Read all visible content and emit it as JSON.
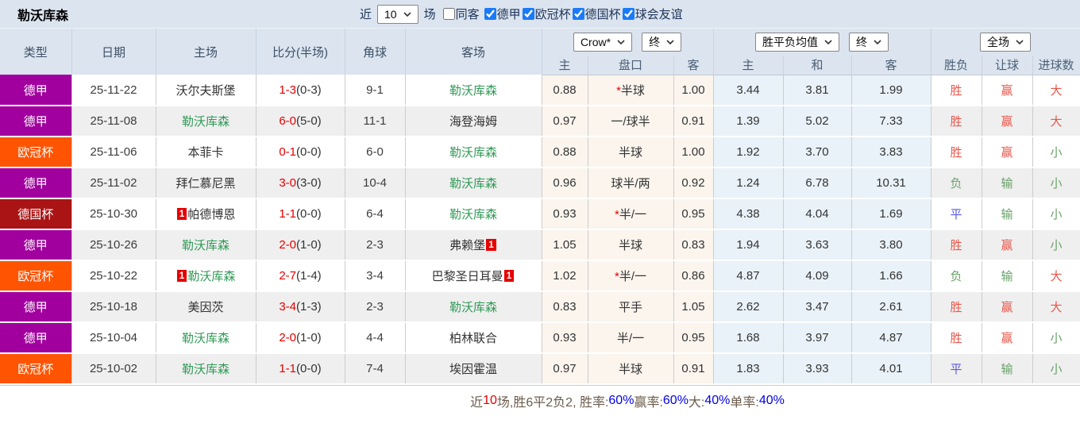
{
  "title": "勒沃库森",
  "colors": {
    "purple": "#a1009e",
    "orange": "#ff5502",
    "darkred": "#aa1414",
    "team_green": "#2f9a56",
    "score_red": "#e60000",
    "win_red": "#e8574b",
    "lose_green": "#69a269",
    "draw_blue": "#5a5ae0",
    "pct_blue": "#0000ee"
  },
  "topbar": {
    "recent_label": "近",
    "recent_value": "10",
    "games_label": "场",
    "same_venue_label": "同客",
    "same_venue_checked": false,
    "league_filters": [
      {
        "label": "德甲",
        "checked": true
      },
      {
        "label": "欧冠杯",
        "checked": true
      },
      {
        "label": "德国杯",
        "checked": true
      },
      {
        "label": "球会友谊",
        "checked": true
      }
    ]
  },
  "table": {
    "headers": {
      "cols": [
        "类型",
        "日期",
        "主场",
        "比分(半场)",
        "角球",
        "客场"
      ],
      "crow_select": "Crow*",
      "crow_state_select": "终",
      "avg_select": "胜平负均值",
      "avg_state_select": "终",
      "full_select": "全场",
      "sub": [
        "主",
        "盘口",
        "客",
        "主",
        "和",
        "客",
        "胜负",
        "让球",
        "进球数"
      ]
    },
    "rows": [
      {
        "league": "德甲",
        "league_color": "purple",
        "date": "25-11-22",
        "home": {
          "name": "沃尔夫斯堡",
          "green": false,
          "badge": null
        },
        "score": "1-3",
        "half": "(0-3)",
        "corners": "9-1",
        "away": {
          "name": "勒沃库森",
          "green": true,
          "badge": null
        },
        "crow": {
          "home": "0.88",
          "star": true,
          "handicap": "半球",
          "away": "1.00"
        },
        "avg": {
          "home": "3.44",
          "draw": "3.81",
          "away": "1.99"
        },
        "verdict": {
          "result": "胜",
          "result_cls": "r",
          "let": "赢",
          "let_cls": "r",
          "goals": "大",
          "goals_cls": "r"
        }
      },
      {
        "league": "德甲",
        "league_color": "purple",
        "date": "25-11-08",
        "home": {
          "name": "勒沃库森",
          "green": true,
          "badge": null
        },
        "score": "6-0",
        "half": "(5-0)",
        "corners": "11-1",
        "away": {
          "name": "海登海姆",
          "green": false,
          "badge": null
        },
        "crow": {
          "home": "0.97",
          "star": false,
          "handicap": "一/球半",
          "away": "0.91"
        },
        "avg": {
          "home": "1.39",
          "draw": "5.02",
          "away": "7.33"
        },
        "verdict": {
          "result": "胜",
          "result_cls": "r",
          "let": "赢",
          "let_cls": "r",
          "goals": "大",
          "goals_cls": "r"
        }
      },
      {
        "league": "欧冠杯",
        "league_color": "orange",
        "date": "25-11-06",
        "home": {
          "name": "本菲卡",
          "green": false,
          "badge": null
        },
        "score": "0-1",
        "half": "(0-0)",
        "corners": "6-0",
        "away": {
          "name": "勒沃库森",
          "green": true,
          "badge": null
        },
        "crow": {
          "home": "0.88",
          "star": false,
          "handicap": "半球",
          "away": "1.00"
        },
        "avg": {
          "home": "1.92",
          "draw": "3.70",
          "away": "3.83"
        },
        "verdict": {
          "result": "胜",
          "result_cls": "r",
          "let": "赢",
          "let_cls": "r",
          "goals": "小",
          "goals_cls": "g"
        }
      },
      {
        "league": "德甲",
        "league_color": "purple",
        "date": "25-11-02",
        "home": {
          "name": "拜仁慕尼黑",
          "green": false,
          "badge": null
        },
        "score": "3-0",
        "half": "(3-0)",
        "corners": "10-4",
        "away": {
          "name": "勒沃库森",
          "green": true,
          "badge": null
        },
        "crow": {
          "home": "0.96",
          "star": false,
          "handicap": "球半/两",
          "away": "0.92"
        },
        "avg": {
          "home": "1.24",
          "draw": "6.78",
          "away": "10.31"
        },
        "verdict": {
          "result": "负",
          "result_cls": "g",
          "let": "输",
          "let_cls": "g",
          "goals": "小",
          "goals_cls": "g"
        }
      },
      {
        "league": "德国杯",
        "league_color": "darkred",
        "date": "25-10-30",
        "home": {
          "name": "帕德博恩",
          "green": false,
          "badge": "pre"
        },
        "score": "1-1",
        "half": "(0-0)",
        "corners": "6-4",
        "away": {
          "name": "勒沃库森",
          "green": true,
          "badge": null
        },
        "crow": {
          "home": "0.93",
          "star": true,
          "handicap": "半/一",
          "away": "0.95"
        },
        "avg": {
          "home": "4.38",
          "draw": "4.04",
          "away": "1.69"
        },
        "verdict": {
          "result": "平",
          "result_cls": "b",
          "let": "输",
          "let_cls": "g",
          "goals": "小",
          "goals_cls": "g"
        }
      },
      {
        "league": "德甲",
        "league_color": "purple",
        "date": "25-10-26",
        "home": {
          "name": "勒沃库森",
          "green": true,
          "badge": null
        },
        "score": "2-0",
        "half": "(1-0)",
        "corners": "2-3",
        "away": {
          "name": "弗赖堡",
          "green": false,
          "badge": "post"
        },
        "crow": {
          "home": "1.05",
          "star": false,
          "handicap": "半球",
          "away": "0.83"
        },
        "avg": {
          "home": "1.94",
          "draw": "3.63",
          "away": "3.80"
        },
        "verdict": {
          "result": "胜",
          "result_cls": "r",
          "let": "赢",
          "let_cls": "r",
          "goals": "小",
          "goals_cls": "g"
        }
      },
      {
        "league": "欧冠杯",
        "league_color": "orange",
        "date": "25-10-22",
        "home": {
          "name": "勒沃库森",
          "green": true,
          "badge": "pre"
        },
        "score": "2-7",
        "half": "(1-4)",
        "corners": "3-4",
        "away": {
          "name": "巴黎圣日耳曼",
          "green": false,
          "badge": "post"
        },
        "crow": {
          "home": "1.02",
          "star": true,
          "handicap": "半/一",
          "away": "0.86"
        },
        "avg": {
          "home": "4.87",
          "draw": "4.09",
          "away": "1.66"
        },
        "verdict": {
          "result": "负",
          "result_cls": "g",
          "let": "输",
          "let_cls": "g",
          "goals": "大",
          "goals_cls": "r"
        }
      },
      {
        "league": "德甲",
        "league_color": "purple",
        "date": "25-10-18",
        "home": {
          "name": "美因茨",
          "green": false,
          "badge": null
        },
        "score": "3-4",
        "half": "(1-3)",
        "corners": "2-3",
        "away": {
          "name": "勒沃库森",
          "green": true,
          "badge": null
        },
        "crow": {
          "home": "0.83",
          "star": false,
          "handicap": "平手",
          "away": "1.05"
        },
        "avg": {
          "home": "2.62",
          "draw": "3.47",
          "away": "2.61"
        },
        "verdict": {
          "result": "胜",
          "result_cls": "r",
          "let": "赢",
          "let_cls": "r",
          "goals": "大",
          "goals_cls": "r"
        }
      },
      {
        "league": "德甲",
        "league_color": "purple",
        "date": "25-10-04",
        "home": {
          "name": "勒沃库森",
          "green": true,
          "badge": null
        },
        "score": "2-0",
        "half": "(1-0)",
        "corners": "4-4",
        "away": {
          "name": "柏林联合",
          "green": false,
          "badge": null
        },
        "crow": {
          "home": "0.93",
          "star": false,
          "handicap": "半/一",
          "away": "0.95"
        },
        "avg": {
          "home": "1.68",
          "draw": "3.97",
          "away": "4.87"
        },
        "verdict": {
          "result": "胜",
          "result_cls": "r",
          "let": "赢",
          "let_cls": "r",
          "goals": "小",
          "goals_cls": "g"
        }
      },
      {
        "league": "欧冠杯",
        "league_color": "orange",
        "date": "25-10-02",
        "home": {
          "name": "勒沃库森",
          "green": true,
          "badge": null
        },
        "score": "1-1",
        "half": "(0-0)",
        "corners": "7-4",
        "away": {
          "name": "埃因霍温",
          "green": false,
          "badge": null
        },
        "crow": {
          "home": "0.97",
          "star": false,
          "handicap": "半球",
          "away": "0.91"
        },
        "avg": {
          "home": "1.83",
          "draw": "3.93",
          "away": "4.01"
        },
        "verdict": {
          "result": "平",
          "result_cls": "b",
          "let": "输",
          "let_cls": "g",
          "goals": "小",
          "goals_cls": "g"
        }
      }
    ]
  },
  "footer": {
    "segments": [
      {
        "text": "近",
        "cls": "t"
      },
      {
        "text": "10",
        "cls": "r"
      },
      {
        "text": "场,胜6平2负2, 胜率:",
        "cls": "t"
      },
      {
        "text": "60%",
        "cls": "b"
      },
      {
        "text": " 赢率:",
        "cls": "t"
      },
      {
        "text": "60%",
        "cls": "b"
      },
      {
        "text": " 大:",
        "cls": "t"
      },
      {
        "text": "40%",
        "cls": "b"
      },
      {
        "text": " 单率:",
        "cls": "t"
      },
      {
        "text": "40%",
        "cls": "b"
      }
    ]
  }
}
